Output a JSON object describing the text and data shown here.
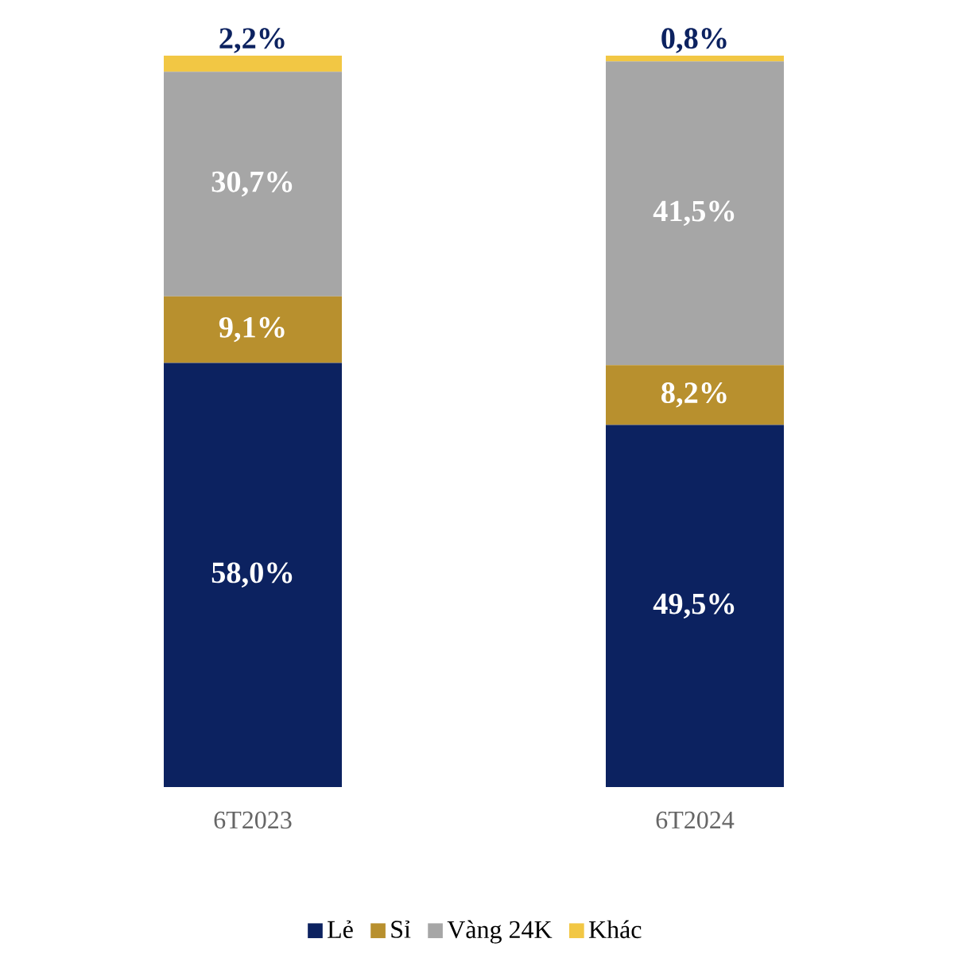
{
  "chart_data": {
    "type": "bar",
    "stacked": true,
    "categories": [
      "6T2023",
      "6T2024"
    ],
    "legend": "bottom",
    "series": [
      {
        "name": "Lẻ",
        "color": "#0c2260",
        "values": [
          58.0,
          49.5
        ],
        "value_labels": [
          "58,0%",
          "49,5%"
        ]
      },
      {
        "name": "Sỉ",
        "color": "#b8902e",
        "values": [
          9.1,
          8.2
        ],
        "value_labels": [
          "9,1%",
          "8,2%"
        ]
      },
      {
        "name": "Vàng 24K",
        "color": "#a6a6a6",
        "values": [
          30.7,
          41.5
        ],
        "value_labels": [
          "30,7%",
          "41,5%"
        ]
      },
      {
        "name": "Khác",
        "color": "#f2c744",
        "values": [
          2.2,
          0.8
        ],
        "value_labels": [
          "2,2%",
          "0,8%"
        ]
      }
    ]
  }
}
